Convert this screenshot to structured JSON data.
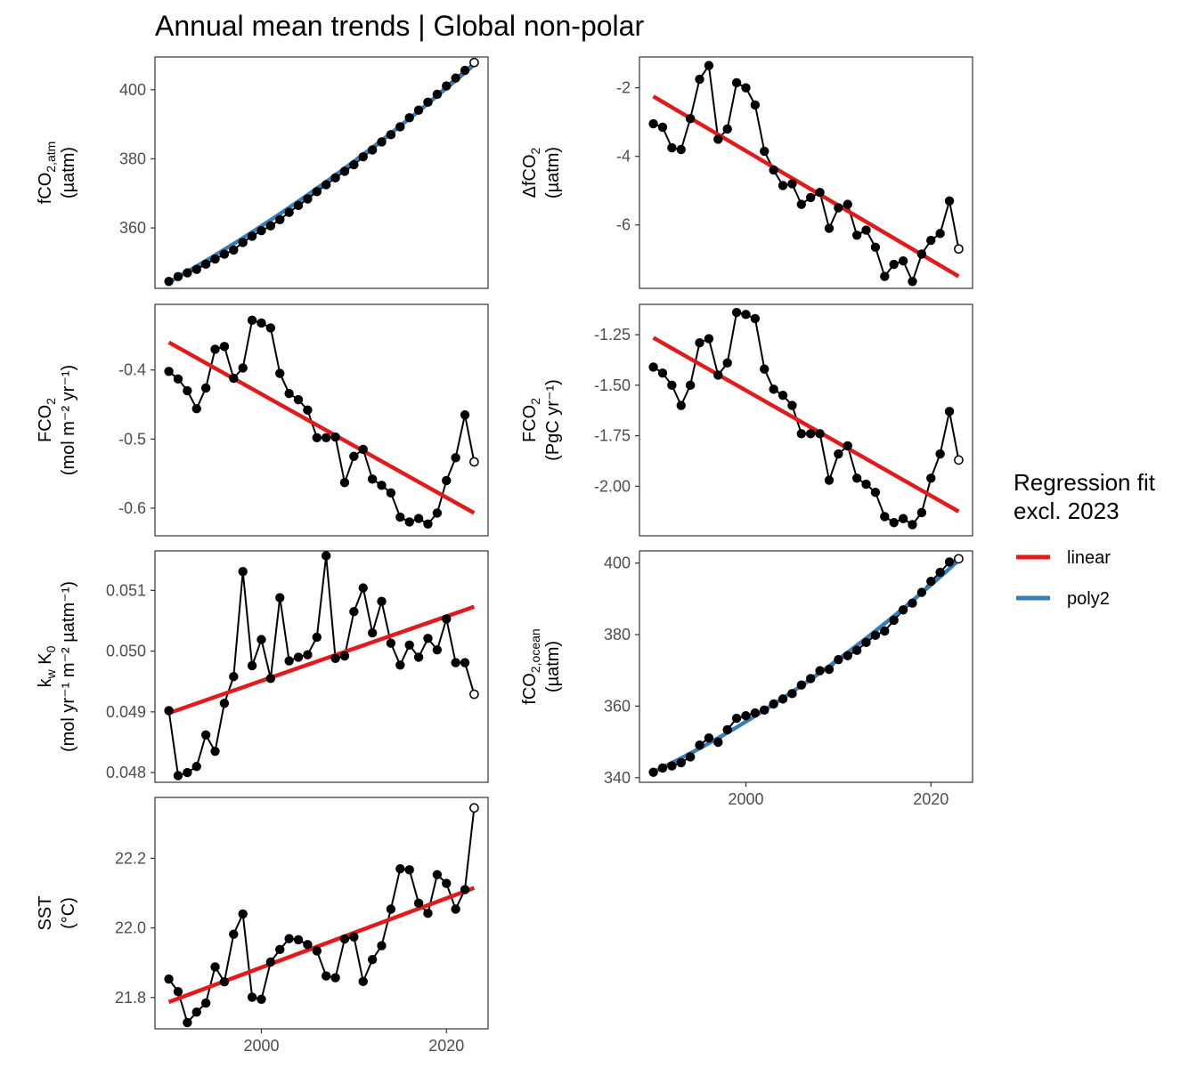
{
  "title": "Annual mean trends | Global non-polar",
  "legend": {
    "title_line1": "Regression fit",
    "title_line2": "excl. 2023",
    "items": [
      {
        "label": "linear",
        "color": "#e31a1c"
      },
      {
        "label": "poly2",
        "color": "#377eb8"
      }
    ],
    "placement": "right"
  },
  "colors": {
    "points": "#000000",
    "linear": "#e31a1c",
    "poly2": "#377eb8",
    "panel_border": "#333333"
  },
  "chart_data": [
    {
      "type": "line",
      "id": "fco2atm",
      "ylabel_main": "fCO",
      "ylabel_sub": "2,atm",
      "ylabel_unit": "(µatm)",
      "ylim": [
        342.5,
        409.5
      ],
      "xlim": [
        1988.5,
        2024.5
      ],
      "yticks": [
        360,
        380,
        400
      ],
      "ytick_labels": [
        "360",
        "380",
        "400"
      ],
      "x": [
        1990,
        1991,
        1992,
        1993,
        1994,
        1995,
        1996,
        1997,
        1998,
        1999,
        2000,
        2001,
        2002,
        2003,
        2004,
        2005,
        2006,
        2007,
        2008,
        2009,
        2010,
        2011,
        2012,
        2013,
        2014,
        2015,
        2016,
        2017,
        2018,
        2019,
        2020,
        2021,
        2022,
        2023
      ],
      "values": [
        344.5,
        345.9,
        347.0,
        348.0,
        349.5,
        351.0,
        352.4,
        353.6,
        355.8,
        357.6,
        359.2,
        360.6,
        362.4,
        364.5,
        366.5,
        368.4,
        370.5,
        372.5,
        374.5,
        376.4,
        378.3,
        380.6,
        382.6,
        384.9,
        387.0,
        389.3,
        391.9,
        394.1,
        396.4,
        398.7,
        401.1,
        403.4,
        405.6,
        407.9
      ],
      "fit": {
        "type": "poly2",
        "from": 1990,
        "to": 2023,
        "start": 344.3,
        "mid": 372.4,
        "end": 407.3
      }
    },
    {
      "type": "line",
      "id": "dfco2",
      "ylabel_main": "ΔfCO",
      "ylabel_sub": "2",
      "ylabel_unit": "(µatm)",
      "ylim": [
        -7.85,
        -1.1
      ],
      "xlim": [
        1988.5,
        2024.5
      ],
      "yticks": [
        -6,
        -4,
        -2
      ],
      "ytick_labels": [
        "-6",
        "-4",
        "-2"
      ],
      "x": [
        1990,
        1991,
        1992,
        1993,
        1994,
        1995,
        1996,
        1997,
        1998,
        1999,
        2000,
        2001,
        2002,
        2003,
        2004,
        2005,
        2006,
        2007,
        2008,
        2009,
        2010,
        2011,
        2012,
        2013,
        2014,
        2015,
        2016,
        2017,
        2018,
        2019,
        2020,
        2021,
        2022,
        2023
      ],
      "values": [
        -3.05,
        -3.15,
        -3.75,
        -3.8,
        -2.9,
        -1.75,
        -1.35,
        -3.5,
        -3.2,
        -1.85,
        -2.0,
        -2.5,
        -3.85,
        -4.4,
        -4.85,
        -4.8,
        -5.4,
        -5.2,
        -5.05,
        -6.1,
        -5.5,
        -5.4,
        -6.3,
        -6.15,
        -6.65,
        -7.5,
        -7.15,
        -7.05,
        -7.65,
        -6.85,
        -6.45,
        -6.25,
        -5.3,
        -6.7
      ],
      "fit": {
        "type": "linear",
        "from": 1990,
        "to": 2023,
        "start": -2.25,
        "end": -7.5
      }
    },
    {
      "type": "line",
      "id": "fco2flux_area",
      "ylabel_main": "FCO",
      "ylabel_sub": "2",
      "ylabel_unit": "(mol m⁻² yr⁻¹)",
      "ylim": [
        -0.64,
        -0.305
      ],
      "xlim": [
        1988.5,
        2024.5
      ],
      "yticks": [
        -0.6,
        -0.5,
        -0.4
      ],
      "ytick_labels": [
        "-0.6",
        "-0.5",
        "-0.4"
      ],
      "x": [
        1990,
        1991,
        1992,
        1993,
        1994,
        1995,
        1996,
        1997,
        1998,
        1999,
        2000,
        2001,
        2002,
        2003,
        2004,
        2005,
        2006,
        2007,
        2008,
        2009,
        2010,
        2011,
        2012,
        2013,
        2014,
        2015,
        2016,
        2017,
        2018,
        2019,
        2020,
        2021,
        2022,
        2023
      ],
      "values": [
        -0.402,
        -0.413,
        -0.43,
        -0.456,
        -0.426,
        -0.37,
        -0.366,
        -0.412,
        -0.397,
        -0.328,
        -0.332,
        -0.339,
        -0.405,
        -0.434,
        -0.443,
        -0.458,
        -0.498,
        -0.498,
        -0.497,
        -0.563,
        -0.525,
        -0.515,
        -0.558,
        -0.567,
        -0.578,
        -0.613,
        -0.62,
        -0.615,
        -0.623,
        -0.607,
        -0.56,
        -0.527,
        -0.465,
        -0.533
      ],
      "fit": {
        "type": "linear",
        "from": 1990,
        "to": 2023,
        "start": -0.36,
        "end": -0.607
      }
    },
    {
      "type": "line",
      "id": "fco2flux_total",
      "ylabel_main": "FCO",
      "ylabel_sub": "2",
      "ylabel_unit": "(PgC yr⁻¹)",
      "ylim": [
        -2.245,
        -1.1
      ],
      "xlim": [
        1988.5,
        2024.5
      ],
      "yticks": [
        -2.0,
        -1.75,
        -1.5,
        -1.25
      ],
      "ytick_labels": [
        "-2.00",
        "-1.75",
        "-1.50",
        "-1.25"
      ],
      "x": [
        1990,
        1991,
        1992,
        1993,
        1994,
        1995,
        1996,
        1997,
        1998,
        1999,
        2000,
        2001,
        2002,
        2003,
        2004,
        2005,
        2006,
        2007,
        2008,
        2009,
        2010,
        2011,
        2012,
        2013,
        2014,
        2015,
        2016,
        2017,
        2018,
        2019,
        2020,
        2021,
        2022,
        2023
      ],
      "values": [
        -1.41,
        -1.44,
        -1.5,
        -1.6,
        -1.5,
        -1.29,
        -1.27,
        -1.45,
        -1.39,
        -1.14,
        -1.15,
        -1.17,
        -1.42,
        -1.52,
        -1.55,
        -1.6,
        -1.74,
        -1.74,
        -1.74,
        -1.97,
        -1.84,
        -1.8,
        -1.96,
        -1.99,
        -2.03,
        -2.15,
        -2.18,
        -2.16,
        -2.19,
        -2.13,
        -1.96,
        -1.84,
        -1.63,
        -1.87
      ],
      "fit": {
        "type": "linear",
        "from": 1990,
        "to": 2023,
        "start": -1.265,
        "end": -2.125
      }
    },
    {
      "type": "line",
      "id": "kwk0",
      "ylabel_main_a": "k",
      "ylabel_sub_a": "w",
      "ylabel_main_b": " K",
      "ylabel_sub_b": "0",
      "ylabel_unit": "(mol yr⁻¹ m⁻² µatm⁻¹)",
      "ylim": [
        0.04784,
        0.05165
      ],
      "xlim": [
        1988.5,
        2024.5
      ],
      "yticks": [
        0.048,
        0.049,
        0.05,
        0.051
      ],
      "ytick_labels": [
        "0.048",
        "0.049",
        "0.050",
        "0.051"
      ],
      "x": [
        1990,
        1991,
        1992,
        1993,
        1994,
        1995,
        1996,
        1997,
        1998,
        1999,
        2000,
        2001,
        2002,
        2003,
        2004,
        2005,
        2006,
        2007,
        2008,
        2009,
        2010,
        2011,
        2012,
        2013,
        2014,
        2015,
        2016,
        2017,
        2018,
        2019,
        2020,
        2021,
        2022,
        2023
      ],
      "values": [
        0.04902,
        0.04795,
        0.048,
        0.0481,
        0.04862,
        0.04835,
        0.04914,
        0.04958,
        0.05131,
        0.04976,
        0.05019,
        0.04955,
        0.05088,
        0.04984,
        0.0499,
        0.04994,
        0.05023,
        0.05157,
        0.04988,
        0.04992,
        0.05065,
        0.05104,
        0.0503,
        0.05082,
        0.05013,
        0.04977,
        0.0501,
        0.0499,
        0.05021,
        0.05002,
        0.05053,
        0.04981,
        0.04981,
        0.04929
      ],
      "fit": {
        "type": "linear",
        "from": 1990,
        "to": 2023,
        "start": 0.04898,
        "end": 0.05073
      }
    },
    {
      "type": "line",
      "id": "fco2ocean",
      "ylabel_main": "fCO",
      "ylabel_sub": "2,ocean",
      "ylabel_unit": "(µatm)",
      "ylim": [
        338.7,
        403.4
      ],
      "xlim": [
        1988.5,
        2024.5
      ],
      "yticks": [
        340,
        360,
        380,
        400
      ],
      "ytick_labels": [
        "340",
        "360",
        "380",
        "400"
      ],
      "x": [
        1990,
        1991,
        1992,
        1993,
        1994,
        1995,
        1996,
        1997,
        1998,
        1999,
        2000,
        2001,
        2002,
        2003,
        2004,
        2005,
        2006,
        2007,
        2008,
        2009,
        2010,
        2011,
        2012,
        2013,
        2014,
        2015,
        2016,
        2017,
        2018,
        2019,
        2020,
        2021,
        2022,
        2023
      ],
      "values": [
        341.5,
        342.7,
        343.3,
        344.2,
        345.8,
        349.1,
        351.1,
        349.9,
        353.4,
        356.6,
        357.3,
        358.1,
        358.9,
        360.6,
        362.0,
        363.5,
        365.9,
        367.7,
        369.9,
        370.3,
        373.0,
        374.1,
        375.6,
        377.8,
        379.8,
        381.0,
        384.0,
        386.9,
        388.8,
        391.8,
        394.9,
        397.4,
        400.3,
        401.2
      ],
      "fit": {
        "type": "poly2",
        "from": 1990,
        "to": 2023,
        "start": 341.6,
        "mid": 366.6,
        "end": 400.8
      }
    },
    {
      "type": "line",
      "id": "sst",
      "ylabel_main": "SST",
      "ylabel_sub": "",
      "ylabel_unit": "(°C)",
      "ylim": [
        21.71,
        22.375
      ],
      "xlim": [
        1988.5,
        2024.5
      ],
      "yticks": [
        21.8,
        22.0,
        22.2
      ],
      "ytick_labels": [
        "21.8",
        "22.0",
        "22.2"
      ],
      "xticks": [
        2000,
        2020
      ],
      "xtick_labels": [
        "2000",
        "2020"
      ],
      "x": [
        1990,
        1991,
        1992,
        1993,
        1994,
        1995,
        1996,
        1997,
        1998,
        1999,
        2000,
        2001,
        2002,
        2003,
        2004,
        2005,
        2006,
        2007,
        2008,
        2009,
        2010,
        2011,
        2012,
        2013,
        2014,
        2015,
        2016,
        2017,
        2018,
        2019,
        2020,
        2021,
        2022,
        2023
      ],
      "values": [
        21.853,
        21.817,
        21.728,
        21.758,
        21.784,
        21.888,
        21.845,
        21.982,
        22.04,
        21.801,
        21.795,
        21.902,
        21.938,
        21.969,
        21.966,
        21.952,
        21.934,
        21.862,
        21.857,
        21.968,
        21.974,
        21.846,
        21.909,
        21.949,
        22.054,
        22.17,
        22.167,
        22.071,
        22.042,
        22.153,
        22.128,
        22.054,
        22.11,
        22.345
      ],
      "fit": {
        "type": "linear",
        "from": 1990,
        "to": 2023,
        "start": 21.787,
        "end": 22.115
      }
    }
  ],
  "x_axis": {
    "ticks": [
      2000,
      2020
    ],
    "tick_labels": [
      "2000",
      "2020"
    ]
  }
}
